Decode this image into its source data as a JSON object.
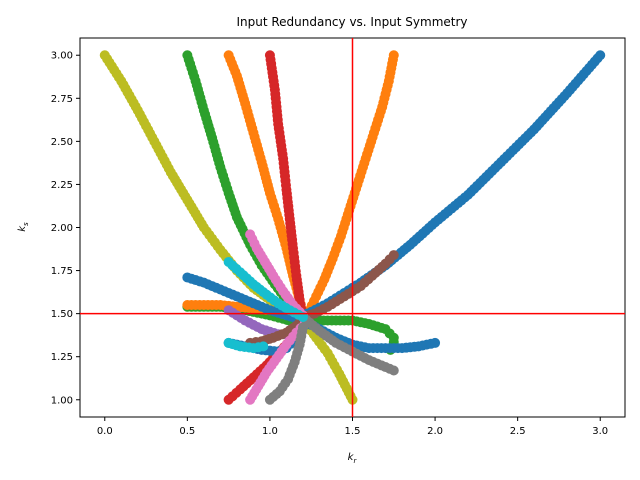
{
  "chart_data": {
    "type": "scatter",
    "title": "Input Redundancy vs. Input Symmetry",
    "xlabel": "k",
    "xlabel_sub": "r",
    "ylabel": "k",
    "ylabel_sub": "s",
    "xlim": [
      -0.15,
      3.15
    ],
    "ylim": [
      0.9,
      3.1
    ],
    "xticks": [
      "0.0",
      "0.5",
      "1.0",
      "1.5",
      "2.0",
      "2.5",
      "3.0"
    ],
    "yticks": [
      "1.00",
      "1.25",
      "1.50",
      "1.75",
      "2.00",
      "2.25",
      "2.50",
      "2.75",
      "3.00"
    ],
    "grid": false,
    "reference_lines": {
      "vertical_x": 1.5,
      "horizontal_y": 1.5,
      "color": "#ff0000"
    },
    "palette": [
      "#1f77b4",
      "#ff7f0e",
      "#2ca02c",
      "#d62728",
      "#9467bd",
      "#8c564b",
      "#e377c2",
      "#7f7f7f",
      "#bcbd22",
      "#17becf"
    ],
    "series": [
      {
        "color": "#bcbd22",
        "points": [
          [
            0.0,
            3.0
          ],
          [
            0.1,
            2.85
          ],
          [
            0.2,
            2.68
          ],
          [
            0.3,
            2.5
          ],
          [
            0.4,
            2.32
          ],
          [
            0.5,
            2.16
          ],
          [
            0.6,
            2.0
          ],
          [
            0.7,
            1.87
          ],
          [
            0.8,
            1.75
          ],
          [
            0.9,
            1.65
          ],
          [
            1.0,
            1.58
          ],
          [
            1.1,
            1.53
          ],
          [
            1.15,
            1.5
          ],
          [
            1.22,
            1.44
          ],
          [
            1.28,
            1.36
          ],
          [
            1.35,
            1.27
          ],
          [
            1.42,
            1.15
          ],
          [
            1.5,
            1.0
          ]
        ]
      },
      {
        "color": "#2ca02c",
        "points": [
          [
            0.5,
            3.0
          ],
          [
            0.55,
            2.85
          ],
          [
            0.6,
            2.68
          ],
          [
            0.65,
            2.52
          ],
          [
            0.7,
            2.35
          ],
          [
            0.75,
            2.2
          ],
          [
            0.8,
            2.06
          ],
          [
            0.88,
            1.9
          ],
          [
            0.95,
            1.78
          ],
          [
            1.03,
            1.67
          ],
          [
            1.1,
            1.58
          ],
          [
            1.16,
            1.52
          ],
          [
            1.2,
            1.48
          ]
        ]
      },
      {
        "color": "#2ca02c",
        "points": [
          [
            0.5,
            1.54
          ],
          [
            0.6,
            1.54
          ],
          [
            0.7,
            1.54
          ],
          [
            0.8,
            1.53
          ],
          [
            0.9,
            1.51
          ],
          [
            1.0,
            1.49
          ],
          [
            1.08,
            1.47
          ],
          [
            1.15,
            1.45
          ],
          [
            1.22,
            1.45
          ],
          [
            1.3,
            1.46
          ],
          [
            1.4,
            1.46
          ],
          [
            1.5,
            1.46
          ],
          [
            1.6,
            1.44
          ],
          [
            1.7,
            1.41
          ],
          [
            1.75,
            1.36
          ],
          [
            1.75,
            1.31
          ],
          [
            1.73,
            1.29
          ]
        ]
      },
      {
        "color": "#ff7f0e",
        "points": [
          [
            0.75,
            3.0
          ],
          [
            0.8,
            2.88
          ],
          [
            0.85,
            2.72
          ],
          [
            0.9,
            2.55
          ],
          [
            0.95,
            2.38
          ],
          [
            1.0,
            2.2
          ],
          [
            1.05,
            2.05
          ],
          [
            1.1,
            1.88
          ],
          [
            1.14,
            1.72
          ],
          [
            1.18,
            1.58
          ],
          [
            1.2,
            1.5
          ]
        ]
      },
      {
        "color": "#ff7f0e",
        "points": [
          [
            1.75,
            3.0
          ],
          [
            1.72,
            2.85
          ],
          [
            1.68,
            2.7
          ],
          [
            1.63,
            2.55
          ],
          [
            1.58,
            2.4
          ],
          [
            1.53,
            2.25
          ],
          [
            1.48,
            2.1
          ],
          [
            1.43,
            1.95
          ],
          [
            1.38,
            1.82
          ],
          [
            1.33,
            1.7
          ],
          [
            1.28,
            1.6
          ],
          [
            1.24,
            1.52
          ],
          [
            1.2,
            1.48
          ]
        ]
      },
      {
        "color": "#ff7f0e",
        "points": [
          [
            0.5,
            1.55
          ],
          [
            0.6,
            1.55
          ],
          [
            0.7,
            1.55
          ],
          [
            0.8,
            1.54
          ],
          [
            0.9,
            1.53
          ],
          [
            1.0,
            1.52
          ],
          [
            1.1,
            1.5
          ],
          [
            1.2,
            1.48
          ]
        ]
      },
      {
        "color": "#d62728",
        "points": [
          [
            1.0,
            3.0
          ],
          [
            1.03,
            2.8
          ],
          [
            1.05,
            2.6
          ],
          [
            1.08,
            2.4
          ],
          [
            1.1,
            2.22
          ],
          [
            1.12,
            2.05
          ],
          [
            1.14,
            1.88
          ],
          [
            1.16,
            1.72
          ],
          [
            1.18,
            1.58
          ],
          [
            1.2,
            1.47
          ]
        ]
      },
      {
        "color": "#d62728",
        "points": [
          [
            0.75,
            1.0
          ],
          [
            0.82,
            1.06
          ],
          [
            0.9,
            1.13
          ],
          [
            0.98,
            1.2
          ],
          [
            1.05,
            1.27
          ],
          [
            1.12,
            1.34
          ],
          [
            1.18,
            1.4
          ],
          [
            1.22,
            1.45
          ]
        ]
      },
      {
        "color": "#1f77b4",
        "points": [
          [
            3.0,
            3.0
          ],
          [
            2.8,
            2.78
          ],
          [
            2.6,
            2.57
          ],
          [
            2.4,
            2.38
          ],
          [
            2.2,
            2.19
          ],
          [
            2.0,
            2.03
          ],
          [
            1.85,
            1.9
          ],
          [
            1.7,
            1.78
          ],
          [
            1.55,
            1.68
          ],
          [
            1.45,
            1.62
          ],
          [
            1.35,
            1.56
          ],
          [
            1.25,
            1.51
          ],
          [
            1.2,
            1.49
          ]
        ]
      },
      {
        "color": "#1f77b4",
        "points": [
          [
            0.5,
            1.71
          ],
          [
            0.6,
            1.68
          ],
          [
            0.7,
            1.64
          ],
          [
            0.8,
            1.6
          ],
          [
            0.9,
            1.56
          ],
          [
            1.0,
            1.52
          ],
          [
            1.1,
            1.49
          ],
          [
            1.2,
            1.46
          ],
          [
            1.3,
            1.41
          ],
          [
            1.4,
            1.36
          ],
          [
            1.5,
            1.32
          ],
          [
            1.6,
            1.3
          ],
          [
            1.7,
            1.3
          ],
          [
            1.8,
            1.3
          ],
          [
            1.9,
            1.31
          ],
          [
            2.0,
            1.33
          ]
        ]
      },
      {
        "color": "#1f77b4",
        "points": [
          [
            0.75,
            1.33
          ],
          [
            0.85,
            1.31
          ],
          [
            0.95,
            1.29
          ],
          [
            1.05,
            1.28
          ],
          [
            1.1,
            1.3
          ],
          [
            1.15,
            1.35
          ],
          [
            1.2,
            1.42
          ]
        ]
      },
      {
        "color": "#9467bd",
        "points": [
          [
            0.75,
            1.52
          ],
          [
            0.85,
            1.46
          ],
          [
            0.95,
            1.41
          ],
          [
            1.05,
            1.38
          ],
          [
            1.12,
            1.38
          ],
          [
            1.18,
            1.41
          ],
          [
            1.22,
            1.45
          ]
        ]
      },
      {
        "color": "#8c564b",
        "points": [
          [
            1.75,
            1.84
          ],
          [
            1.7,
            1.79
          ],
          [
            1.62,
            1.72
          ],
          [
            1.55,
            1.66
          ],
          [
            1.45,
            1.6
          ],
          [
            1.35,
            1.54
          ],
          [
            1.27,
            1.5
          ],
          [
            1.2,
            1.48
          ]
        ]
      },
      {
        "color": "#8c564b",
        "points": [
          [
            0.88,
            1.33
          ],
          [
            0.95,
            1.34
          ],
          [
            1.02,
            1.36
          ],
          [
            1.1,
            1.39
          ],
          [
            1.16,
            1.43
          ],
          [
            1.2,
            1.47
          ]
        ]
      },
      {
        "color": "#e377c2",
        "points": [
          [
            0.88,
            1.96
          ],
          [
            0.92,
            1.88
          ],
          [
            0.97,
            1.8
          ],
          [
            1.02,
            1.72
          ],
          [
            1.08,
            1.63
          ],
          [
            1.14,
            1.55
          ],
          [
            1.2,
            1.49
          ]
        ]
      },
      {
        "color": "#e377c2",
        "points": [
          [
            0.88,
            1.0
          ],
          [
            0.93,
            1.08
          ],
          [
            0.98,
            1.16
          ],
          [
            1.04,
            1.24
          ],
          [
            1.1,
            1.32
          ],
          [
            1.16,
            1.39
          ],
          [
            1.21,
            1.44
          ]
        ]
      },
      {
        "color": "#7f7f7f",
        "points": [
          [
            1.0,
            1.0
          ],
          [
            1.06,
            1.05
          ],
          [
            1.11,
            1.12
          ],
          [
            1.15,
            1.22
          ],
          [
            1.18,
            1.32
          ],
          [
            1.2,
            1.42
          ]
        ]
      },
      {
        "color": "#7f7f7f",
        "points": [
          [
            1.2,
            1.48
          ],
          [
            1.3,
            1.4
          ],
          [
            1.4,
            1.33
          ],
          [
            1.5,
            1.28
          ],
          [
            1.6,
            1.23
          ],
          [
            1.7,
            1.19
          ],
          [
            1.75,
            1.17
          ]
        ]
      },
      {
        "color": "#17becf",
        "points": [
          [
            0.75,
            1.8
          ],
          [
            0.82,
            1.74
          ],
          [
            0.9,
            1.67
          ],
          [
            0.98,
            1.61
          ],
          [
            1.05,
            1.56
          ],
          [
            1.12,
            1.52
          ],
          [
            1.2,
            1.48
          ]
        ]
      },
      {
        "color": "#17becf",
        "points": [
          [
            0.75,
            1.33
          ],
          [
            0.82,
            1.31
          ],
          [
            0.9,
            1.3
          ],
          [
            0.96,
            1.31
          ]
        ]
      }
    ]
  }
}
